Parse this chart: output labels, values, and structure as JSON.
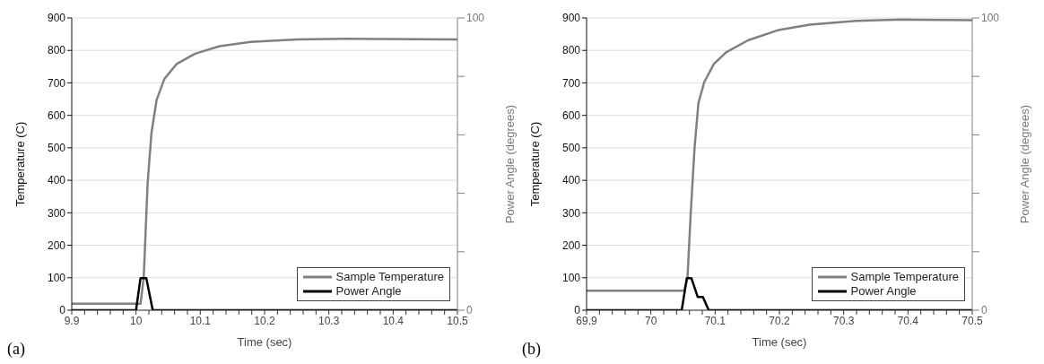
{
  "chart_data": [
    {
      "type": "line",
      "xlabel": "Time (sec)",
      "ylabel": "Temperature (C)",
      "y2label": "Power Angle (degrees)",
      "annotations": [
        "(a)"
      ],
      "xlim": [
        9.9,
        10.5
      ],
      "xticks": [
        9.9,
        {
          "value": 9.92,
          "label": null
        },
        {
          "value": 9.94,
          "label": null
        },
        {
          "value": 9.96,
          "label": null
        },
        {
          "value": 9.98,
          "label": null
        },
        10,
        {
          "value": 10.02,
          "label": null
        },
        {
          "value": 10.04,
          "label": null
        },
        {
          "value": 10.06,
          "label": null
        },
        {
          "value": 10.08,
          "label": null
        },
        10.1,
        {
          "value": 10.12,
          "label": null
        },
        {
          "value": 10.14,
          "label": null
        },
        {
          "value": 10.16,
          "label": null
        },
        {
          "value": 10.18,
          "label": null
        },
        10.2,
        {
          "value": 10.22,
          "label": null
        },
        {
          "value": 10.24,
          "label": null
        },
        {
          "value": 10.26,
          "label": null
        },
        {
          "value": 10.28,
          "label": null
        },
        10.3,
        {
          "value": 10.32,
          "label": null
        },
        {
          "value": 10.34,
          "label": null
        },
        {
          "value": 10.36,
          "label": null
        },
        {
          "value": 10.38,
          "label": null
        },
        10.4,
        {
          "value": 10.42,
          "label": null
        },
        {
          "value": 10.44,
          "label": null
        },
        {
          "value": 10.46,
          "label": null
        },
        {
          "value": 10.48,
          "label": null
        },
        10.5
      ],
      "ylim": [
        0,
        900
      ],
      "yticks": [
        {
          "value": 0,
          "label": "0"
        },
        100,
        200,
        300,
        400,
        500,
        600,
        700,
        800,
        900
      ],
      "y2lim": [
        0,
        100
      ],
      "y2ticks": [
        {
          "value": 0,
          "label": "0"
        },
        {
          "value": 20,
          "label": null
        },
        {
          "value": 40,
          "label": null
        },
        {
          "value": 60,
          "label": null
        },
        {
          "value": 80,
          "label": null
        },
        100
      ],
      "grid": "y",
      "legend": "bottom right",
      "marker": "none",
      "line_style": "solid",
      "series": [
        {
          "name": "Sample Temperature",
          "color": "#808080",
          "x": [
            9.9,
            10.007,
            10.012,
            10.018,
            10.024,
            10.032,
            10.044,
            10.063,
            10.092,
            10.13,
            10.178,
            10.25,
            10.323,
            10.5
          ],
          "values": [
            20,
            20,
            101,
            390,
            546,
            647,
            712,
            758,
            790,
            813,
            826,
            834,
            836,
            834
          ]
        },
        {
          "name": "Power Angle",
          "color": "#000000",
          "axis": "y2",
          "x": [
            9.9,
            10.0,
            10.007,
            10.016,
            10.026,
            10.5
          ],
          "values": [
            0,
            0,
            11,
            11,
            0,
            0
          ]
        }
      ]
    },
    {
      "type": "line",
      "xlabel": "Time (sec)",
      "ylabel": "Temperature (C)",
      "y2label": "Power Angle (degrees)",
      "annotations": [
        "(b)"
      ],
      "xlim": [
        69.9,
        70.5
      ],
      "xticks": [
        69.9,
        {
          "value": 69.92,
          "label": null
        },
        {
          "value": 69.94,
          "label": null
        },
        {
          "value": 69.96,
          "label": null
        },
        {
          "value": 69.98,
          "label": null
        },
        70,
        {
          "value": 70.02,
          "label": null
        },
        {
          "value": 70.04,
          "label": null
        },
        {
          "value": 70.06,
          "label": null
        },
        {
          "value": 70.08,
          "label": null
        },
        70.1,
        {
          "value": 70.12,
          "label": null
        },
        {
          "value": 70.14,
          "label": null
        },
        {
          "value": 70.16,
          "label": null
        },
        {
          "value": 70.18,
          "label": null
        },
        70.2,
        {
          "value": 70.22,
          "label": null
        },
        {
          "value": 70.24,
          "label": null
        },
        {
          "value": 70.26,
          "label": null
        },
        {
          "value": 70.28,
          "label": null
        },
        70.3,
        {
          "value": 70.32,
          "label": null
        },
        {
          "value": 70.34,
          "label": null
        },
        {
          "value": 70.36,
          "label": null
        },
        {
          "value": 70.38,
          "label": null
        },
        70.4,
        {
          "value": 70.42,
          "label": null
        },
        {
          "value": 70.44,
          "label": null
        },
        {
          "value": 70.46,
          "label": null
        },
        {
          "value": 70.48,
          "label": null
        },
        70.5
      ],
      "ylim": [
        0,
        900
      ],
      "yticks": [
        {
          "value": 0,
          "label": "0"
        },
        100,
        200,
        300,
        400,
        500,
        600,
        700,
        800,
        900
      ],
      "y2lim": [
        0,
        100
      ],
      "y2ticks": [
        {
          "value": 0,
          "label": "0"
        },
        {
          "value": 20,
          "label": null
        },
        {
          "value": 40,
          "label": null
        },
        {
          "value": 60,
          "label": null
        },
        {
          "value": 80,
          "label": null
        },
        100
      ],
      "grid": "y",
      "legend": "bottom right",
      "marker": "none",
      "line_style": "solid",
      "series": [
        {
          "name": "Sample Temperature",
          "color": "#808080",
          "x": [
            69.9,
            70.052,
            70.057,
            70.062,
            70.068,
            70.074,
            70.083,
            70.098,
            70.117,
            70.151,
            70.199,
            70.247,
            70.32,
            70.392,
            70.5
          ],
          "values": [
            60,
            60,
            101,
            298,
            500,
            638,
            702,
            758,
            794,
            831,
            863,
            879,
            891,
            895,
            893
          ]
        },
        {
          "name": "Power Angle",
          "color": "#000000",
          "axis": "y2",
          "x": [
            69.9,
            70.048,
            70.056,
            70.063,
            70.073,
            70.081,
            70.09,
            70.5
          ],
          "values": [
            0,
            0,
            11,
            11,
            4.5,
            4.5,
            0,
            0
          ]
        }
      ]
    }
  ]
}
